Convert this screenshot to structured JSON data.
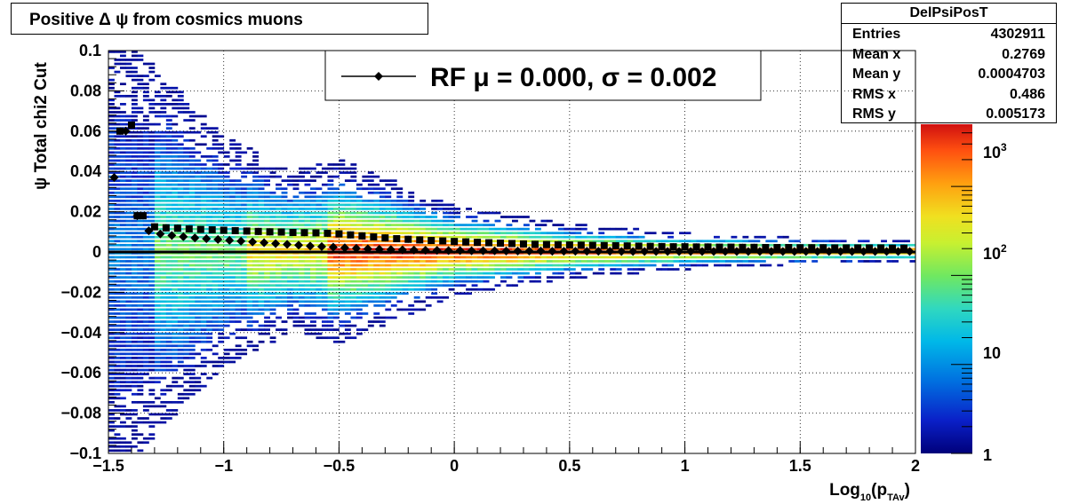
{
  "title": "Positive Δ ψ from cosmics muons",
  "stats": {
    "name": "DelPsiPosT",
    "rows": [
      {
        "key": "Entries",
        "value": "4302911"
      },
      {
        "key": "Mean x",
        "value": "0.2769"
      },
      {
        "key": "Mean y",
        "value": "0.0004703"
      },
      {
        "key": "RMS x",
        "value": "0.486"
      },
      {
        "key": "RMS y",
        "value": "0.005173"
      }
    ]
  },
  "legend": {
    "label": "RF μ =  0.000, σ =   0.002"
  },
  "chart_data": {
    "type": "heatmap",
    "title": "Positive Δ ψ from cosmics muons",
    "xlabel": "Log10(pTAv)",
    "ylabel": "ψ  Total chi2 Cut",
    "xlim": [
      -1.5,
      2
    ],
    "ylim": [
      -0.1,
      0.1
    ],
    "grid": true,
    "log_z": true,
    "z_ticks": [
      {
        "value": 1,
        "label": "1"
      },
      {
        "value": 10,
        "label": "10"
      },
      {
        "value": 100,
        "label": "10",
        "sup": "2"
      },
      {
        "value": 1000,
        "label": "10",
        "sup": "3"
      }
    ],
    "x_ticks": [
      {
        "v": -1.5,
        "label": "−1.5"
      },
      {
        "v": -1,
        "label": "−1"
      },
      {
        "v": -0.5,
        "label": "−0.5"
      },
      {
        "v": 0,
        "label": "0"
      },
      {
        "v": 0.5,
        "label": "0.5"
      },
      {
        "v": 1,
        "label": "1"
      },
      {
        "v": 1.5,
        "label": "1.5"
      },
      {
        "v": 2,
        "label": "2"
      }
    ],
    "y_ticks": [
      {
        "v": 0.1,
        "label": "0.1"
      },
      {
        "v": 0.08,
        "label": "0.08"
      },
      {
        "v": 0.06,
        "label": "0.06"
      },
      {
        "v": 0.04,
        "label": "0.04"
      },
      {
        "v": 0.02,
        "label": "0.02"
      },
      {
        "v": 0,
        "label": "0"
      },
      {
        "v": -0.02,
        "label": "−0.02"
      },
      {
        "v": -0.04,
        "label": "−0.04"
      },
      {
        "v": -0.06,
        "label": "−0.06"
      },
      {
        "v": -0.08,
        "label": "−0.08"
      },
      {
        "v": -0.1,
        "label": "−0.1"
      }
    ],
    "series": [
      {
        "marker": "square",
        "x": [
          -1.45,
          -1.4,
          -1.375,
          -1.35,
          -1.3,
          -1.25,
          -1.2,
          -1.15,
          -1.1,
          -1.05,
          -1.0,
          -0.95,
          -0.9,
          -0.85,
          -0.8,
          -0.75,
          -0.7,
          -0.65,
          -0.6,
          -0.55,
          -0.5,
          -0.45,
          -0.4,
          -0.35,
          -0.3,
          -0.25,
          -0.2,
          -0.15,
          -0.1,
          -0.05,
          0.0,
          0.05,
          0.1,
          0.15,
          0.2,
          0.25,
          0.3,
          0.35,
          0.4,
          0.45,
          0.5,
          0.55,
          0.6,
          0.65,
          0.7,
          0.75,
          0.8,
          0.85,
          0.9,
          0.95,
          1.0,
          1.05,
          1.1,
          1.15,
          1.2,
          1.25,
          1.3,
          1.35,
          1.4,
          1.45,
          1.5,
          1.55,
          1.6,
          1.65,
          1.7,
          1.75,
          1.8,
          1.85,
          1.9,
          1.95
        ],
        "y": [
          0.06,
          0.063,
          0.018,
          0.018,
          0.0125,
          0.012,
          0.0118,
          0.0115,
          0.0112,
          0.011,
          0.0108,
          0.0106,
          0.0104,
          0.0102,
          0.01,
          0.0099,
          0.0097,
          0.0096,
          0.0095,
          0.0093,
          0.009,
          0.0085,
          0.008,
          0.0075,
          0.007,
          0.0066,
          0.0063,
          0.006,
          0.0057,
          0.0055,
          0.0052,
          0.005,
          0.0048,
          0.0046,
          0.0044,
          0.0042,
          0.004,
          0.0038,
          0.0037,
          0.0036,
          0.0035,
          0.0034,
          0.0033,
          0.0032,
          0.0031,
          0.003,
          0.0029,
          0.0028,
          0.0027,
          0.0026,
          0.0026,
          0.0025,
          0.0025,
          0.0024,
          0.0024,
          0.0023,
          0.0023,
          0.0022,
          0.0022,
          0.0022,
          0.0021,
          0.0021,
          0.0021,
          0.002,
          0.002,
          0.002,
          0.002,
          0.002,
          0.0019,
          0.0019
        ]
      },
      {
        "marker": "diamond",
        "x": [
          -1.475,
          -1.425,
          -1.375,
          -1.325,
          -1.275,
          -1.225,
          -1.175,
          -1.125,
          -1.075,
          -1.025,
          -0.975,
          -0.925,
          -0.875,
          -0.825,
          -0.775,
          -0.725,
          -0.675,
          -0.625,
          -0.575,
          -0.525,
          -0.475,
          -0.425,
          -0.375,
          -0.325,
          -0.275,
          -0.225,
          -0.175,
          -0.125,
          -0.075,
          -0.025,
          0.025,
          0.075,
          0.125,
          0.175,
          0.225,
          0.275,
          0.325,
          0.375,
          0.425,
          0.475,
          0.525,
          0.575,
          0.625,
          0.675,
          0.725,
          0.775,
          0.825,
          0.875,
          0.925,
          0.975,
          1.025,
          1.075,
          1.125,
          1.175,
          1.225,
          1.275,
          1.325,
          1.375,
          1.425,
          1.475,
          1.525,
          1.575,
          1.625,
          1.675,
          1.725,
          1.775,
          1.825,
          1.875,
          1.925,
          1.975
        ],
        "y": [
          0.037,
          0.06,
          0.018,
          0.0105,
          0.009,
          0.0082,
          0.0076,
          0.007,
          0.0066,
          0.0062,
          0.0058,
          0.0054,
          0.005,
          0.0046,
          0.0042,
          0.0038,
          0.0034,
          0.003,
          0.0027,
          0.0024,
          0.0021,
          0.0018,
          0.0016,
          0.0014,
          0.0012,
          0.0011,
          0.001,
          0.0009,
          0.0008,
          0.0007,
          0.0007,
          0.0006,
          0.0006,
          0.0006,
          0.0005,
          0.0005,
          0.0005,
          0.0005,
          0.0004,
          0.0004,
          0.0004,
          0.0004,
          0.0004,
          0.0004,
          0.0003,
          0.0003,
          0.0003,
          0.0003,
          0.0003,
          0.0003,
          0.0003,
          0.0003,
          0.0003,
          0.0003,
          0.0003,
          0.0003,
          0.0003,
          0.0003,
          0.0003,
          0.0003,
          0.0003,
          0.0003,
          0.0003,
          0.0003,
          0.0003,
          0.0003,
          0.0003,
          0.0003,
          0.0003,
          0.0003
        ]
      }
    ],
    "spread": {
      "x": [
        -1.5,
        -1.0,
        -0.7,
        -0.5,
        0.0,
        0.5,
        1.0,
        1.5,
        2.0
      ],
      "y_width": [
        0.1,
        0.05,
        0.035,
        0.04,
        0.02,
        0.012,
        0.008,
        0.006,
        0.005
      ]
    }
  }
}
